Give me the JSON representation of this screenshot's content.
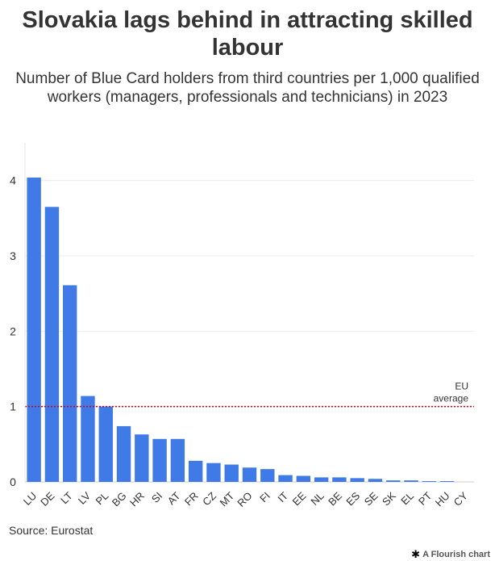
{
  "title": "Slovakia lags behind in attracting skilled labour",
  "subtitle": "Number of Blue Card holders from third countries per 1,000 qualified workers (managers, professionals and technicians) in 2023",
  "source": "Source: Eurostat",
  "credit": {
    "icon": "flourish-icon",
    "label": "A Flourish chart"
  },
  "chart_data": {
    "type": "bar",
    "categories": [
      "LU",
      "DE",
      "LT",
      "LV",
      "PL",
      "BG",
      "HR",
      "SI",
      "AT",
      "FR",
      "CZ",
      "MT",
      "RO",
      "FI",
      "IT",
      "EE",
      "NL",
      "BE",
      "ES",
      "SE",
      "SK",
      "EL",
      "PT",
      "HU",
      "CY"
    ],
    "values": [
      4.04,
      3.65,
      2.61,
      1.14,
      1.0,
      0.74,
      0.63,
      0.57,
      0.57,
      0.28,
      0.25,
      0.23,
      0.19,
      0.17,
      0.09,
      0.08,
      0.06,
      0.06,
      0.05,
      0.04,
      0.02,
      0.02,
      0.01,
      0.01,
      0.0
    ],
    "ylim": [
      0,
      4.5
    ],
    "yticks": [
      0,
      1,
      2,
      3,
      4
    ],
    "grid": true,
    "bar_color": "#3f7ae6",
    "reference_line": {
      "value": 1.0,
      "label_lines": [
        "EU",
        "average"
      ],
      "color": "#d0021b"
    }
  }
}
